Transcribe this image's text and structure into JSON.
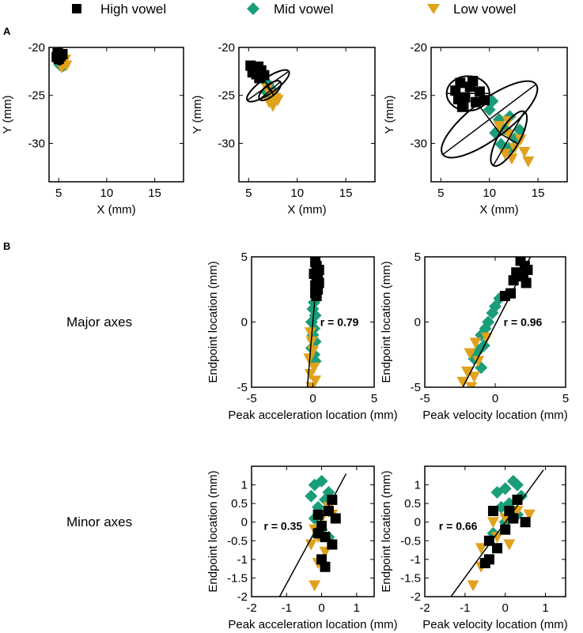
{
  "colors": {
    "high": "#000000",
    "mid": "#1a9e7a",
    "low": "#e0a21c"
  },
  "legend": [
    {
      "key": "high",
      "label": "High vowel",
      "marker": "square"
    },
    {
      "key": "mid",
      "label": "Mid vowel",
      "marker": "diamond"
    },
    {
      "key": "low",
      "label": "Low vowel",
      "marker": "triangle-down"
    }
  ],
  "panel_labels": {
    "a": "A",
    "b": "B"
  },
  "row_labels": {
    "major": "Major axes",
    "minor": "Minor axes"
  },
  "chart_data": [
    {
      "id": "a1",
      "type": "scatter",
      "xlabel": "X (mm)",
      "ylabel": "Y (mm)",
      "xlim": [
        4,
        18
      ],
      "ylim": [
        -34,
        -20
      ],
      "xticks": [
        5,
        10,
        15
      ],
      "yticks": [
        -20,
        -25,
        -30
      ],
      "series": [
        {
          "key": "high",
          "points": [
            [
              4.9,
              -20.6
            ],
            [
              5.2,
              -20.9
            ],
            [
              5.0,
              -21.2
            ],
            [
              5.4,
              -20.7
            ],
            [
              4.8,
              -21.0
            ]
          ]
        },
        {
          "key": "mid",
          "points": [
            [
              5.3,
              -21.2
            ],
            [
              5.6,
              -21.6
            ],
            [
              5.1,
              -21.8
            ],
            [
              5.5,
              -21.9
            ],
            [
              5.2,
              -21.4
            ]
          ]
        },
        {
          "key": "low",
          "points": [
            [
              5.5,
              -21.5
            ],
            [
              5.8,
              -21.9
            ],
            [
              5.3,
              -22.1
            ],
            [
              5.7,
              -21.3
            ],
            [
              5.4,
              -21.7
            ]
          ]
        }
      ],
      "ellipses": [
        {
          "cx": 5.1,
          "cy": -20.9,
          "rx": 0.5,
          "ry": 0.9,
          "angle": 0
        }
      ]
    },
    {
      "id": "a2",
      "type": "scatter",
      "xlabel": "X (mm)",
      "ylabel": "Y (mm)",
      "xlim": [
        4,
        18
      ],
      "ylim": [
        -34,
        -20
      ],
      "xticks": [
        5,
        10,
        15
      ],
      "yticks": [
        -20,
        -25,
        -30
      ],
      "series": [
        {
          "key": "high",
          "points": [
            [
              5.2,
              -21.9
            ],
            [
              5.6,
              -22.2
            ],
            [
              6.0,
              -22.0
            ],
            [
              5.4,
              -22.6
            ],
            [
              6.3,
              -22.4
            ],
            [
              5.8,
              -22.8
            ],
            [
              6.6,
              -22.9
            ],
            [
              6.1,
              -23.2
            ]
          ]
        },
        {
          "key": "mid",
          "points": [
            [
              6.5,
              -23.3
            ],
            [
              7.0,
              -23.8
            ],
            [
              7.3,
              -24.3
            ],
            [
              6.8,
              -24.6
            ],
            [
              7.6,
              -24.9
            ],
            [
              7.2,
              -25.2
            ]
          ]
        },
        {
          "key": "low",
          "points": [
            [
              6.9,
              -24.3
            ],
            [
              7.4,
              -24.9
            ],
            [
              7.8,
              -25.3
            ],
            [
              7.1,
              -25.7
            ],
            [
              8.0,
              -25.5
            ],
            [
              7.5,
              -26.1
            ]
          ]
        }
      ],
      "ellipses": [
        {
          "cx": 7.0,
          "cy": -24.0,
          "rx": 2.6,
          "ry": 0.8,
          "angle": -35
        },
        {
          "cx": 7.2,
          "cy": -24.5,
          "rx": 1.4,
          "ry": 0.6,
          "angle": -40
        }
      ]
    },
    {
      "id": "a3",
      "type": "scatter",
      "xlabel": "X (mm)",
      "ylabel": "Y (mm)",
      "xlim": [
        4,
        18
      ],
      "ylim": [
        -34,
        -20
      ],
      "xticks": [
        5,
        10,
        15
      ],
      "yticks": [
        -20,
        -25,
        -30
      ],
      "series": [
        {
          "key": "high",
          "points": [
            [
              6.5,
              -24.5
            ],
            [
              7.0,
              -23.7
            ],
            [
              7.5,
              -25.2
            ],
            [
              8.0,
              -24.1
            ],
            [
              8.6,
              -25.7
            ],
            [
              7.2,
              -26.2
            ],
            [
              9.0,
              -24.6
            ],
            [
              8.3,
              -23.5
            ],
            [
              6.8,
              -25.4
            ],
            [
              9.5,
              -25.5
            ]
          ]
        },
        {
          "key": "mid",
          "points": [
            [
              10.0,
              -26.5
            ],
            [
              11.0,
              -27.5
            ],
            [
              11.6,
              -28.5
            ],
            [
              12.1,
              -27.2
            ],
            [
              10.6,
              -28.9
            ],
            [
              12.6,
              -29.5
            ],
            [
              11.2,
              -30.1
            ],
            [
              13.1,
              -28.6
            ],
            [
              10.3,
              -25.6
            ],
            [
              12.0,
              -30.5
            ]
          ]
        },
        {
          "key": "low",
          "points": [
            [
              11.0,
              -28.2
            ],
            [
              12.0,
              -29.1
            ],
            [
              12.6,
              -30.5
            ],
            [
              13.2,
              -29.6
            ],
            [
              11.6,
              -31.1
            ],
            [
              12.3,
              -31.6
            ],
            [
              13.6,
              -30.9
            ],
            [
              11.9,
              -27.7
            ],
            [
              14.0,
              -31.9
            ]
          ]
        }
      ],
      "ellipses": [
        {
          "cx": 10.0,
          "cy": -27.5,
          "rx": 6.0,
          "ry": 2.0,
          "angle": -37
        },
        {
          "cx": 7.8,
          "cy": -24.8,
          "rx": 2.2,
          "ry": 1.8,
          "angle": 0
        },
        {
          "cx": 12.0,
          "cy": -29.5,
          "rx": 3.2,
          "ry": 1.1,
          "angle": -60
        }
      ]
    },
    {
      "id": "b1",
      "type": "scatter",
      "xlabel": "Peak acceleration location (mm)",
      "ylabel": "Endpoint location (mm)",
      "xlim": [
        -5,
        5
      ],
      "ylim": [
        -5,
        5
      ],
      "xticks": [
        -5,
        0,
        5
      ],
      "yticks": [
        5,
        0,
        -5
      ],
      "r_label": "r =  0.79",
      "r_pos": [
        0.6,
        0
      ],
      "fit_line": [
        [
          -0.45,
          -5
        ],
        [
          0.45,
          5
        ]
      ],
      "series": [
        {
          "key": "high",
          "points": [
            [
              0.2,
              4.6
            ],
            [
              0.3,
              4.3
            ],
            [
              0.5,
              4.0
            ],
            [
              0.1,
              3.7
            ],
            [
              0.4,
              3.5
            ],
            [
              0.3,
              3.2
            ],
            [
              0.5,
              3.0
            ],
            [
              0.2,
              2.8
            ],
            [
              0.4,
              2.5
            ],
            [
              0.2,
              2.2
            ],
            [
              0.3,
              2.0
            ]
          ]
        },
        {
          "key": "mid",
          "points": [
            [
              0.1,
              1.5
            ],
            [
              0.0,
              1.0
            ],
            [
              0.2,
              0.5
            ],
            [
              -0.1,
              0.0
            ],
            [
              0.1,
              -0.5
            ],
            [
              0.0,
              -1.0
            ],
            [
              0.2,
              -1.5
            ],
            [
              -0.1,
              -2.0
            ],
            [
              0.1,
              -2.5
            ],
            [
              0.2,
              -3.0
            ]
          ]
        },
        {
          "key": "low",
          "points": [
            [
              -0.2,
              -0.8
            ],
            [
              -0.1,
              -1.5
            ],
            [
              0.0,
              -2.2
            ],
            [
              -0.3,
              -2.8
            ],
            [
              0.1,
              -3.5
            ],
            [
              -0.2,
              -4.0
            ],
            [
              0.2,
              -4.5
            ],
            [
              -0.1,
              -5.0
            ]
          ]
        }
      ]
    },
    {
      "id": "b2",
      "type": "scatter",
      "xlabel": "Peak velocity location (mm)",
      "ylabel": "Endpoint location (mm)",
      "xlim": [
        -5,
        5
      ],
      "ylim": [
        -5,
        5
      ],
      "xticks": [
        -5,
        0,
        5
      ],
      "yticks": [
        5,
        0,
        -5
      ],
      "r_label": "r =  0.96",
      "r_pos": [
        0.6,
        0
      ],
      "fit_line": [
        [
          -2.3,
          -5
        ],
        [
          2.5,
          5
        ]
      ],
      "series": [
        {
          "key": "high",
          "points": [
            [
              1.8,
              4.7
            ],
            [
              2.1,
              4.3
            ],
            [
              2.3,
              4.0
            ],
            [
              1.5,
              3.8
            ],
            [
              2.0,
              3.5
            ],
            [
              1.3,
              3.2
            ],
            [
              2.2,
              3.0
            ],
            [
              1.1,
              2.2
            ],
            [
              0.7,
              2.0
            ]
          ]
        },
        {
          "key": "mid",
          "points": [
            [
              0.3,
              1.8
            ],
            [
              0.0,
              1.2
            ],
            [
              -0.2,
              0.7
            ],
            [
              -0.5,
              0.0
            ],
            [
              -0.7,
              -0.5
            ],
            [
              -1.0,
              -1.0
            ],
            [
              -0.8,
              -1.8
            ],
            [
              -1.2,
              -2.2
            ],
            [
              -1.5,
              -2.8
            ],
            [
              -1.0,
              -3.5
            ]
          ]
        },
        {
          "key": "low",
          "points": [
            [
              -0.6,
              -1.2
            ],
            [
              -1.4,
              -1.6
            ],
            [
              -1.8,
              -2.4
            ],
            [
              -1.2,
              -3.0
            ],
            [
              -2.0,
              -3.8
            ],
            [
              -1.5,
              -4.2
            ],
            [
              -2.3,
              -4.6
            ],
            [
              -1.7,
              -5.0
            ]
          ]
        }
      ]
    },
    {
      "id": "b3",
      "type": "scatter",
      "xlabel": "Peak acceleration location (mm)",
      "ylabel": "Endpoint location (mm)",
      "xlim": [
        -2,
        1.5
      ],
      "ylim": [
        -2,
        1.5
      ],
      "xticks": [
        -2,
        -1,
        0,
        1
      ],
      "yticks": [
        1,
        0.5,
        0,
        -0.5,
        -1,
        -1.5,
        -2
      ],
      "yticklabels": [
        "1",
        "0.5",
        "0",
        "-0.5",
        "-1",
        "-1.5",
        "-2"
      ],
      "r_label": "r =  0.35",
      "r_pos": [
        -1.65,
        -0.1
      ],
      "fit_line": [
        [
          -1.2,
          -2.0
        ],
        [
          0.7,
          1.3
        ]
      ],
      "series": [
        {
          "key": "high",
          "points": [
            [
              0.3,
              0.6
            ],
            [
              0.2,
              0.3
            ],
            [
              0.4,
              0.1
            ],
            [
              0.0,
              -0.1
            ],
            [
              -0.1,
              -0.3
            ],
            [
              0.1,
              -0.4
            ],
            [
              0.3,
              -0.6
            ],
            [
              0.0,
              -1.0
            ],
            [
              0.1,
              -1.2
            ],
            [
              -0.1,
              0.2
            ]
          ]
        },
        {
          "key": "mid",
          "points": [
            [
              -0.2,
              1.0
            ],
            [
              0.0,
              1.1
            ],
            [
              0.2,
              0.8
            ],
            [
              -0.3,
              0.7
            ],
            [
              0.1,
              0.6
            ],
            [
              -0.1,
              0.4
            ],
            [
              0.2,
              0.3
            ],
            [
              -0.2,
              0.1
            ],
            [
              0.0,
              -0.2
            ],
            [
              0.2,
              -0.4
            ]
          ]
        },
        {
          "key": "low",
          "points": [
            [
              -0.3,
              -0.6
            ],
            [
              -0.1,
              -0.4
            ],
            [
              0.1,
              -0.8
            ],
            [
              -0.2,
              -0.2
            ],
            [
              0.0,
              0.1
            ],
            [
              0.2,
              0.4
            ],
            [
              -0.1,
              -1.1
            ],
            [
              -0.2,
              -1.7
            ],
            [
              0.3,
              0.2
            ]
          ]
        }
      ]
    },
    {
      "id": "b4",
      "type": "scatter",
      "xlabel": "Peak velocity location (mm)",
      "ylabel": "Endpoint location (mm)",
      "xlim": [
        -2,
        1.5
      ],
      "ylim": [
        -2,
        1.5
      ],
      "xticks": [
        -2,
        -1,
        0,
        1
      ],
      "yticks": [
        1,
        0.5,
        0,
        -0.5,
        -1,
        -1.5,
        -2
      ],
      "yticklabels": [
        "1",
        "0.5",
        "0",
        "-0.5",
        "-1",
        "-1.5",
        "-2"
      ],
      "r_label": "r =  0.66",
      "r_pos": [
        -1.65,
        -0.1
      ],
      "fit_line": [
        [
          -1.35,
          -2.0
        ],
        [
          0.95,
          1.4
        ]
      ],
      "series": [
        {
          "key": "high",
          "points": [
            [
              0.3,
              0.6
            ],
            [
              0.1,
              0.3
            ],
            [
              -0.3,
              0.3
            ],
            [
              0.2,
              0.1
            ],
            [
              0.0,
              -0.2
            ],
            [
              -0.4,
              -0.5
            ],
            [
              -0.2,
              -0.7
            ],
            [
              -0.4,
              -1.0
            ],
            [
              -0.5,
              -1.1
            ],
            [
              0.5,
              0.0
            ]
          ]
        },
        {
          "key": "mid",
          "points": [
            [
              0.2,
              1.1
            ],
            [
              0.3,
              1.0
            ],
            [
              0.0,
              0.9
            ],
            [
              -0.2,
              0.8
            ],
            [
              0.4,
              0.7
            ],
            [
              0.1,
              0.5
            ],
            [
              -0.1,
              0.4
            ],
            [
              0.3,
              0.2
            ],
            [
              0.0,
              0.0
            ],
            [
              -0.3,
              -0.3
            ]
          ]
        },
        {
          "key": "low",
          "points": [
            [
              -0.6,
              -0.7
            ],
            [
              -0.2,
              -0.4
            ],
            [
              0.0,
              0.1
            ],
            [
              0.3,
              0.3
            ],
            [
              0.6,
              0.2
            ],
            [
              -0.3,
              0.0
            ],
            [
              -0.6,
              -1.2
            ],
            [
              -0.8,
              -1.7
            ],
            [
              0.1,
              -0.6
            ]
          ]
        }
      ]
    }
  ]
}
